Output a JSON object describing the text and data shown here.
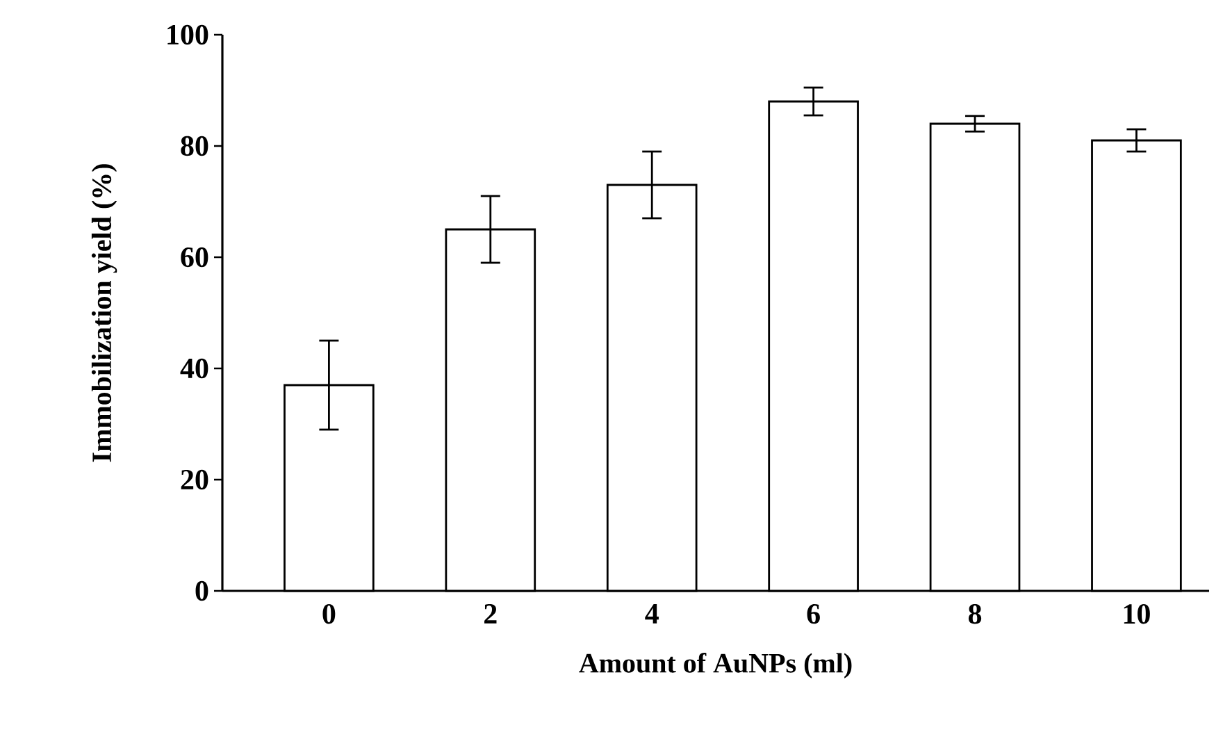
{
  "chart_data": {
    "type": "bar",
    "xlabel": "Amount of AuNPs (ml)",
    "ylabel": "Immobilization yield (%)",
    "categories": [
      "0",
      "2",
      "4",
      "6",
      "8",
      "10"
    ],
    "values": [
      37,
      65,
      73,
      88,
      84,
      81
    ],
    "errors": [
      8,
      6,
      6,
      2.5,
      1.4,
      2
    ],
    "color": "#ffffff",
    "ylim": [
      0,
      100
    ],
    "yticks": [
      0,
      20,
      40,
      60,
      80,
      100
    ]
  }
}
